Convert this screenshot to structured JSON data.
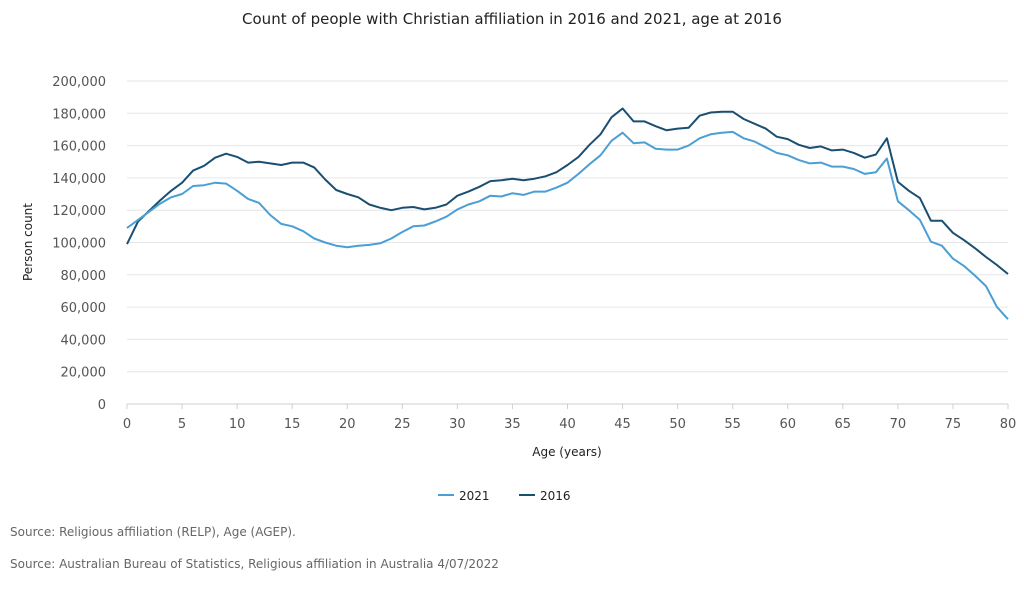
{
  "chart_data": {
    "type": "line",
    "title": "Count of people with Christian affiliation in 2016 and 2021, age at 2016",
    "xlabel": "Age (years)",
    "ylabel": "Person count",
    "xlim": [
      0,
      80
    ],
    "ylim": [
      0,
      200000
    ],
    "xticks": [
      0,
      5,
      10,
      15,
      20,
      25,
      30,
      35,
      40,
      45,
      50,
      55,
      60,
      65,
      70,
      75,
      80
    ],
    "yticks": [
      0,
      20000,
      40000,
      60000,
      80000,
      100000,
      120000,
      140000,
      160000,
      180000,
      200000
    ],
    "ytick_labels": [
      "0",
      "20,000",
      "40,000",
      "60,000",
      "80,000",
      "100,000",
      "120,000",
      "140,000",
      "160,000",
      "180,000",
      "200,000"
    ],
    "grid": "horizontal",
    "legend_position": "bottom-center",
    "x": [
      0,
      1,
      2,
      3,
      4,
      5,
      6,
      7,
      8,
      9,
      10,
      11,
      12,
      13,
      14,
      15,
      16,
      17,
      18,
      19,
      20,
      21,
      22,
      23,
      24,
      25,
      26,
      27,
      28,
      29,
      30,
      31,
      32,
      33,
      34,
      35,
      36,
      37,
      38,
      39,
      40,
      41,
      42,
      43,
      44,
      45,
      46,
      47,
      48,
      49,
      50,
      51,
      52,
      53,
      54,
      55,
      56,
      57,
      58,
      59,
      60,
      61,
      62,
      63,
      64,
      65,
      66,
      67,
      68,
      69,
      70,
      71,
      72,
      73,
      74,
      75,
      76,
      77,
      78,
      79,
      80
    ],
    "series": [
      {
        "name": "2021",
        "color": "#4a9fd4",
        "values": [
          109000,
          114000,
          119000,
          124000,
          128000,
          130000,
          135000,
          135500,
          137000,
          136500,
          132000,
          127000,
          124500,
          117000,
          111500,
          110000,
          107000,
          102500,
          100000,
          98000,
          97000,
          98000,
          98500,
          99500,
          102500,
          106500,
          110000,
          110500,
          113000,
          116000,
          120500,
          123500,
          125500,
          129000,
          128500,
          130500,
          129500,
          131500,
          131500,
          134000,
          137000,
          142500,
          148500,
          154000,
          163000,
          168000,
          161500,
          162000,
          158000,
          157500,
          157500,
          160000,
          164500,
          167000,
          168000,
          168500,
          164500,
          162500,
          159000,
          155500,
          154000,
          151000,
          149000,
          149500,
          147000,
          147000,
          145500,
          142500,
          143500,
          152000,
          125500,
          120000,
          114000,
          100500,
          98000,
          90000,
          85500,
          79500,
          73000,
          60000,
          52500
        ]
      },
      {
        "name": "2016",
        "color": "#1a4f72",
        "values": [
          99000,
          113000,
          119500,
          126000,
          132000,
          137000,
          144500,
          147500,
          152500,
          155000,
          153000,
          149500,
          150000,
          149000,
          148000,
          149500,
          149500,
          146500,
          139000,
          132500,
          130000,
          128000,
          123500,
          121500,
          120000,
          121500,
          122000,
          120500,
          121500,
          123500,
          129000,
          131500,
          134500,
          138000,
          138500,
          139500,
          138500,
          139500,
          141000,
          143500,
          148000,
          153000,
          160500,
          167000,
          177500,
          183000,
          175000,
          175000,
          172000,
          169500,
          170500,
          171000,
          178500,
          180500,
          181000,
          181000,
          176500,
          173500,
          170500,
          165500,
          164000,
          160500,
          158500,
          159500,
          157000,
          157500,
          155500,
          152500,
          154500,
          164500,
          137500,
          132000,
          127500,
          113500,
          113500,
          106000,
          101500,
          96500,
          91000,
          86000,
          80500
        ]
      }
    ]
  },
  "sources": [
    "Source: Religious affiliation (RELP), Age (AGEP).",
    "Source: Australian Bureau of Statistics, Religious affiliation in Australia 4/07/2022"
  ]
}
